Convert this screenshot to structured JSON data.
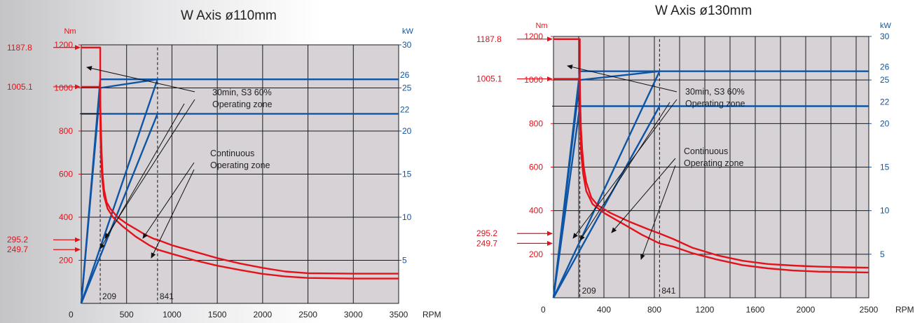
{
  "colors": {
    "red": "#e3121b",
    "blue": "#0e55a5",
    "plot_bg": "#d6d2d6",
    "grid": "#1a1a1a",
    "text": "#222222"
  },
  "chart_data": [
    {
      "type": "line",
      "title": "W Axis ø110mm",
      "left_unit": "Nm",
      "right_unit": "kW",
      "x_unit": "RPM",
      "xlim": [
        0,
        3500
      ],
      "ylim_left": [
        0,
        1200
      ],
      "ylim_right": [
        0,
        30
      ],
      "x_ticks": [
        0,
        500,
        1000,
        1500,
        2000,
        2500,
        3000,
        3500
      ],
      "x_gridlines": [
        500,
        1000,
        1500,
        2000,
        2500,
        3000
      ],
      "y_left_ticks": [
        200,
        400,
        600,
        800,
        1000,
        1200
      ],
      "y_right_ticks": [
        5,
        10,
        15,
        20,
        25,
        30
      ],
      "y_right_extra_ticks": [
        22,
        26
      ],
      "marked_torques": [
        1187.8,
        1005.1,
        295.2,
        249.7
      ],
      "marked_speeds": [
        209,
        841
      ],
      "annotations": [
        "30min, S3 60%",
        "Operating zone",
        "Continuous",
        "Operating zone"
      ],
      "series": [
        {
          "group": "torque",
          "values": [
            [
              0,
              1187.8
            ],
            [
              200,
              1187.8
            ],
            [
              209,
              1187.8
            ],
            [
              209,
              1005.1
            ],
            [
              212,
              900
            ],
            [
              218,
              800
            ],
            [
              225,
              700
            ],
            [
              235,
              600
            ],
            [
              250,
              530
            ],
            [
              280,
              470
            ],
            [
              320,
              440
            ],
            [
              400,
              400
            ],
            [
              500,
              370
            ],
            [
              600,
              345
            ],
            [
              700,
              320
            ],
            [
              800,
              300
            ],
            [
              841,
              295.2
            ],
            [
              1000,
              270
            ],
            [
              1250,
              240
            ],
            [
              1500,
              210
            ],
            [
              1750,
              185
            ],
            [
              2000,
              165
            ],
            [
              2250,
              148
            ],
            [
              2500,
              140
            ],
            [
              3000,
              138
            ],
            [
              3500,
              138
            ]
          ]
        },
        {
          "group": "torque",
          "values": [
            [
              0,
              1005.1
            ],
            [
              209,
              1005.1
            ],
            [
              209,
              880
            ],
            [
              212,
              780
            ],
            [
              218,
              680
            ],
            [
              230,
              580
            ],
            [
              250,
              500
            ],
            [
              290,
              440
            ],
            [
              350,
              400
            ],
            [
              450,
              360
            ],
            [
              600,
              310
            ],
            [
              750,
              270
            ],
            [
              841,
              249.7
            ],
            [
              1000,
              230
            ],
            [
              1250,
              200
            ],
            [
              1500,
              175
            ],
            [
              1750,
              155
            ],
            [
              2000,
              137
            ],
            [
              2250,
              125
            ],
            [
              2500,
              118
            ],
            [
              3000,
              115
            ],
            [
              3500,
              115
            ]
          ]
        },
        {
          "group": "power",
          "values": [
            [
              0,
              0
            ],
            [
              209,
              26
            ],
            [
              3500,
              26
            ]
          ]
        },
        {
          "group": "power",
          "values": [
            [
              0,
              22
            ],
            [
              3500,
              22
            ]
          ]
        },
        {
          "group": "power",
          "values": [
            [
              0,
              0
            ],
            [
              209,
              25
            ],
            [
              841,
              26
            ]
          ]
        },
        {
          "group": "power",
          "values": [
            [
              0,
              0
            ],
            [
              841,
              26
            ]
          ]
        },
        {
          "group": "power",
          "values": [
            [
              0,
              0
            ],
            [
              841,
              22
            ]
          ]
        }
      ]
    },
    {
      "type": "line",
      "title": "W Axis ø130mm",
      "left_unit": "Nm",
      "right_unit": "kW",
      "x_unit": "RPM",
      "xlim": [
        0,
        2500
      ],
      "ylim_left": [
        0,
        1200
      ],
      "ylim_right": [
        0,
        30
      ],
      "x_ticks": [
        0,
        400,
        800,
        1200,
        1600,
        2000,
        2500
      ],
      "x_gridlines": [
        200,
        400,
        600,
        800,
        1000,
        1200,
        1400,
        1600,
        1800,
        2000,
        2200,
        2400
      ],
      "y_left_ticks": [
        200,
        400,
        600,
        800,
        1000,
        1200
      ],
      "y_right_ticks": [
        5,
        10,
        15,
        20,
        25,
        30
      ],
      "y_right_extra_ticks": [
        22,
        26
      ],
      "marked_torques": [
        1187.8,
        1005.1,
        295.2,
        249.7
      ],
      "marked_speeds": [
        209,
        841
      ],
      "annotations": [
        "30min, S3 60%",
        "Operating zone",
        "Continuous",
        "Operating zone"
      ],
      "series": [
        {
          "group": "torque",
          "values": [
            [
              0,
              1187.8
            ],
            [
              209,
              1187.8
            ],
            [
              209,
              1005.1
            ],
            [
              212,
              900
            ],
            [
              218,
              780
            ],
            [
              228,
              680
            ],
            [
              240,
              600
            ],
            [
              260,
              530
            ],
            [
              300,
              460
            ],
            [
              350,
              425
            ],
            [
              450,
              390
            ],
            [
              600,
              350
            ],
            [
              750,
              315
            ],
            [
              841,
              295.2
            ],
            [
              950,
              270
            ],
            [
              1100,
              230
            ],
            [
              1300,
              195
            ],
            [
              1500,
              170
            ],
            [
              1700,
              155
            ],
            [
              1900,
              148
            ],
            [
              2100,
              143
            ],
            [
              2300,
              140
            ],
            [
              2500,
              138
            ]
          ]
        },
        {
          "group": "torque",
          "values": [
            [
              0,
              1005.1
            ],
            [
              209,
              1005.1
            ],
            [
              209,
              870
            ],
            [
              212,
              770
            ],
            [
              220,
              660
            ],
            [
              235,
              570
            ],
            [
              260,
              490
            ],
            [
              310,
              430
            ],
            [
              400,
              390
            ],
            [
              550,
              340
            ],
            [
              700,
              290
            ],
            [
              841,
              249.7
            ],
            [
              950,
              235
            ],
            [
              1100,
              205
            ],
            [
              1300,
              175
            ],
            [
              1500,
              150
            ],
            [
              1700,
              135
            ],
            [
              1900,
              125
            ],
            [
              2100,
              120
            ],
            [
              2300,
              118
            ],
            [
              2500,
              116
            ]
          ]
        },
        {
          "group": "power",
          "values": [
            [
              0,
              0
            ],
            [
              209,
              26
            ],
            [
              2500,
              26
            ]
          ]
        },
        {
          "group": "power",
          "values": [
            [
              209,
              22
            ],
            [
              2500,
              22
            ]
          ]
        },
        {
          "group": "power",
          "values": [
            [
              0,
              0
            ],
            [
              209,
              25
            ],
            [
              841,
              26
            ]
          ]
        },
        {
          "group": "power",
          "values": [
            [
              0,
              0
            ],
            [
              841,
              26
            ]
          ]
        },
        {
          "group": "power",
          "values": [
            [
              0,
              0
            ],
            [
              841,
              22
            ]
          ]
        },
        {
          "group": "power",
          "values": [
            [
              0,
              0
            ],
            [
              209,
              22
            ]
          ]
        }
      ]
    }
  ]
}
